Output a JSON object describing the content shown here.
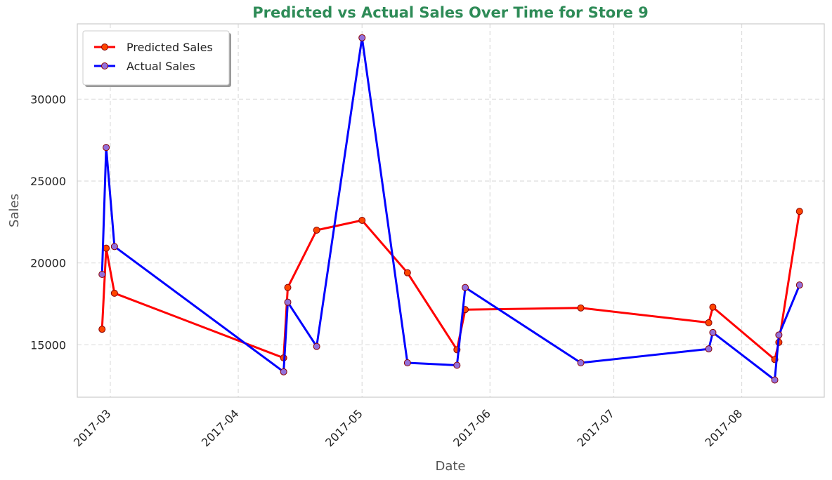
{
  "chart_data": {
    "type": "line",
    "title": "Predicted  vs Actual Sales Over Time for Store 9",
    "xlabel": "Date",
    "ylabel": "Sales",
    "xlim": [
      "2017-02-21",
      "2017-08-21"
    ],
    "ylim": [
      11800,
      34600
    ],
    "xticks": [
      "2017-03",
      "2017-04",
      "2017-05",
      "2017-06",
      "2017-07",
      "2017-08"
    ],
    "xtick_dates": [
      "2017-03-01",
      "2017-04-01",
      "2017-05-01",
      "2017-06-01",
      "2017-07-01",
      "2017-08-01"
    ],
    "yticks": [
      15000,
      20000,
      25000,
      30000
    ],
    "grid": true,
    "legend_position": "top-left",
    "colors": {
      "title": "#2e8b57",
      "predicted_line": "#ff0000",
      "predicted_marker_fill": "#ff4500",
      "actual_line": "#0000ff",
      "actual_marker_fill": "#9370db",
      "marker_edge": "#8b0000",
      "axis_label": "#555555",
      "grid": "#dddddd"
    },
    "series": [
      {
        "name": "Predicted Sales",
        "points": [
          [
            "2017-02-27",
            15950
          ],
          [
            "2017-02-28",
            20900
          ],
          [
            "2017-03-02",
            18150
          ],
          [
            "2017-04-12",
            14200
          ],
          [
            "2017-04-13",
            18500
          ],
          [
            "2017-04-20",
            22000
          ],
          [
            "2017-05-01",
            22600
          ],
          [
            "2017-05-12",
            19400
          ],
          [
            "2017-05-24",
            14700
          ],
          [
            "2017-05-26",
            17150
          ],
          [
            "2017-06-23",
            17250
          ],
          [
            "2017-07-24",
            16350
          ],
          [
            "2017-07-25",
            17300
          ],
          [
            "2017-08-09",
            14100
          ],
          [
            "2017-08-10",
            15150
          ],
          [
            "2017-08-15",
            23150
          ]
        ]
      },
      {
        "name": "Actual Sales",
        "points": [
          [
            "2017-02-27",
            19300
          ],
          [
            "2017-02-28",
            27050
          ],
          [
            "2017-03-02",
            21000
          ],
          [
            "2017-04-12",
            13350
          ],
          [
            "2017-04-13",
            17600
          ],
          [
            "2017-04-20",
            14900
          ],
          [
            "2017-05-01",
            33750
          ],
          [
            "2017-05-12",
            13900
          ],
          [
            "2017-05-24",
            13750
          ],
          [
            "2017-05-26",
            18500
          ],
          [
            "2017-06-23",
            13900
          ],
          [
            "2017-07-24",
            14750
          ],
          [
            "2017-07-25",
            15750
          ],
          [
            "2017-08-09",
            12850
          ],
          [
            "2017-08-10",
            15600
          ],
          [
            "2017-08-15",
            18650
          ]
        ]
      }
    ]
  }
}
